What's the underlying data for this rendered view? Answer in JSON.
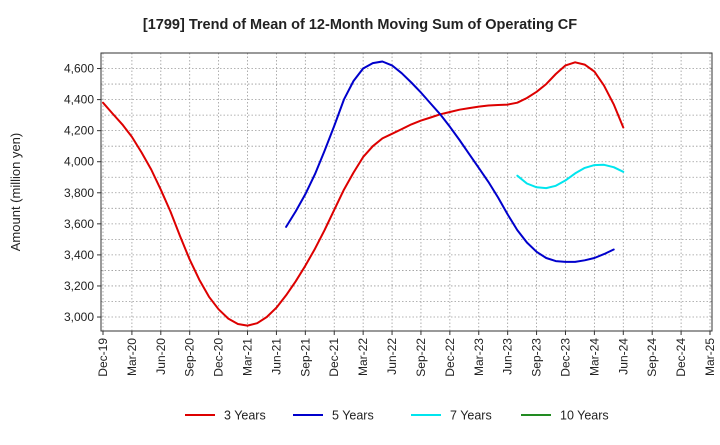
{
  "chart_data": {
    "type": "line",
    "title": "[1799]  Trend of Mean of 12-Month Moving Sum of Operating CF",
    "xlabel": "",
    "ylabel": "Amount (million yen)",
    "ylim": [
      2910,
      4700
    ],
    "yticks": [
      3000,
      3200,
      3400,
      3600,
      3800,
      4000,
      4200,
      4400,
      4600
    ],
    "ytick_labels": [
      "3,000",
      "3,200",
      "3,400",
      "3,600",
      "3,800",
      "4,000",
      "4,200",
      "4,400",
      "4,600"
    ],
    "x_categories": [
      "Dec-19",
      "Mar-20",
      "Jun-20",
      "Sep-20",
      "Dec-20",
      "Mar-21",
      "Jun-21",
      "Sep-21",
      "Dec-21",
      "Mar-22",
      "Jun-22",
      "Sep-22",
      "Dec-22",
      "Mar-23",
      "Jun-23",
      "Sep-23",
      "Dec-23",
      "Mar-24",
      "Jun-24",
      "Sep-24",
      "Dec-24",
      "Mar-25"
    ],
    "grid": true,
    "legend_position": "bottom",
    "series": [
      {
        "name": "3 Years",
        "color": "#dd0000",
        "start_index": 0,
        "values": [
          4380,
          4310,
          4240,
          4160,
          4060,
          3950,
          3820,
          3680,
          3520,
          3370,
          3240,
          3130,
          3050,
          2990,
          2955,
          2945,
          2960,
          3000,
          3060,
          3140,
          3230,
          3330,
          3440,
          3560,
          3690,
          3820,
          3930,
          4030,
          4100,
          4150,
          4180,
          4210,
          4240,
          4265,
          4285,
          4305,
          4320,
          4335,
          4345,
          4355,
          4362,
          4365,
          4368,
          4380,
          4410,
          4450,
          4500,
          4565,
          4620,
          4640,
          4625,
          4580,
          4490,
          4370,
          4220
        ]
      },
      {
        "name": "5 Years",
        "color": "#0000cc",
        "start_index": 19,
        "values": [
          3580,
          3680,
          3790,
          3920,
          4070,
          4230,
          4400,
          4520,
          4600,
          4635,
          4645,
          4620,
          4570,
          4510,
          4445,
          4375,
          4305,
          4225,
          4140,
          4050,
          3960,
          3870,
          3770,
          3660,
          3560,
          3480,
          3420,
          3380,
          3360,
          3355,
          3355,
          3365,
          3380,
          3405,
          3435
        ]
      },
      {
        "name": "7 Years",
        "color": "#00e5ee",
        "start_index": 43,
        "values": [
          3910,
          3860,
          3835,
          3830,
          3845,
          3880,
          3925,
          3960,
          3978,
          3980,
          3965,
          3935
        ]
      },
      {
        "name": "10 Years",
        "color": "#228b22",
        "start_index": 0,
        "values": []
      }
    ]
  }
}
